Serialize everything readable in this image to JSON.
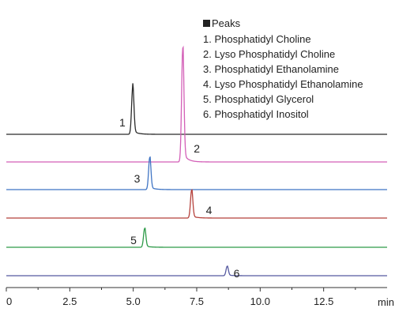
{
  "chart_data": {
    "type": "line",
    "xlabel": "min",
    "xlim": [
      0,
      15
    ],
    "x_ticks": [
      "0",
      "2.5",
      "5.0",
      "7.5",
      "10.0",
      "12.5"
    ],
    "legend": {
      "title": "Peaks",
      "entries": [
        "1. Phosphatidyl Choline",
        "2. Lyso Phosphatidyl Choline",
        "3. Phosphatidyl Ethanolamine",
        "4. Lyso Phosphatidyl Ethanolamine",
        "5. Phosphatidyl Glycerol",
        "6. Phosphatidyl Inositol"
      ]
    },
    "series": [
      {
        "color": "#2b2b2b",
        "peaks": [
          {
            "label": "1",
            "retention_time": 4.98,
            "height": 1.0
          }
        ]
      },
      {
        "color": "#d35fb7",
        "peaks": [
          {
            "label": "2",
            "retention_time": 6.95,
            "height": 2.4
          }
        ]
      },
      {
        "color": "#3f74c4",
        "peaks": [
          {
            "label": "3",
            "retention_time": 5.65,
            "height": 0.68
          }
        ]
      },
      {
        "color": "#b5413b",
        "peaks": [
          {
            "label": "4",
            "retention_time": 7.3,
            "height": 0.59
          }
        ]
      },
      {
        "color": "#2d9a48",
        "peaks": [
          {
            "label": "5",
            "retention_time": 5.45,
            "height": 0.4
          }
        ]
      },
      {
        "color": "#565aa0",
        "peaks": [
          {
            "label": "6",
            "retention_time": 8.7,
            "height": 0.2
          }
        ]
      }
    ]
  }
}
